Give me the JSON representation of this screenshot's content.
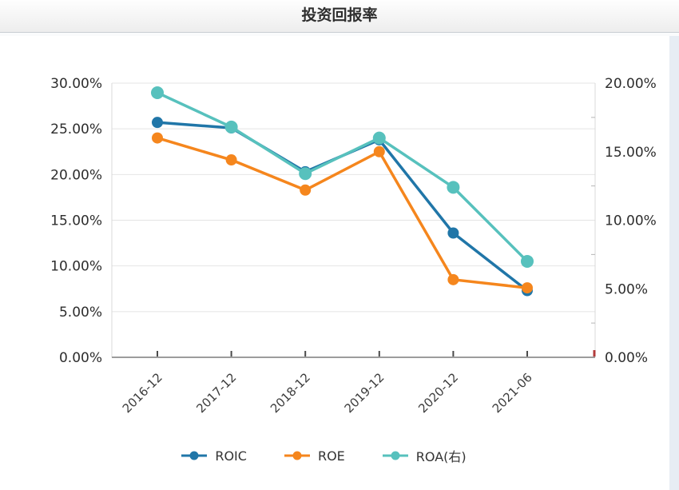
{
  "header": {
    "title": "投资回报率"
  },
  "colors": {
    "roic": "#2076a8",
    "roe": "#f5861d",
    "roa": "#57c1bd",
    "grid": "#e4e4e4",
    "axis_line": "#9c9c9c",
    "tick": "#4a4a4a",
    "end_tick": "#b23b3b",
    "text": "#2d2d2d"
  },
  "chart_data": {
    "type": "line",
    "title": "投资回报率",
    "categories": [
      "2016-12",
      "2017-12",
      "2018-12",
      "2019-12",
      "2020-12",
      "2021-06"
    ],
    "series": [
      {
        "name": "ROIC",
        "axis": "left",
        "color_key": "roic",
        "dot_radius": 7,
        "values": [
          25.7,
          25.1,
          20.3,
          23.8,
          13.6,
          7.3
        ]
      },
      {
        "name": "ROE",
        "axis": "left",
        "color_key": "roe",
        "dot_radius": 7,
        "values": [
          24.0,
          21.6,
          18.3,
          22.5,
          8.5,
          7.6
        ]
      },
      {
        "name": "ROA(右)",
        "axis": "right",
        "color_key": "roa",
        "dot_radius": 8,
        "values": [
          19.3,
          16.8,
          13.4,
          16.0,
          12.4,
          7.0
        ]
      }
    ],
    "left_axis": {
      "min": 0,
      "max": 30,
      "tick_values": [
        0,
        5,
        10,
        15,
        20,
        25,
        30
      ],
      "tick_labels": [
        "0.00%",
        "5.00%",
        "10.00%",
        "15.00%",
        "20.00%",
        "25.00%",
        "30.00%"
      ]
    },
    "right_axis": {
      "min": 0,
      "max": 20,
      "minor_tick_step": 2.5,
      "tick_values": [
        0,
        5,
        10,
        15,
        20
      ],
      "tick_labels": [
        "0.00%",
        "5.00%",
        "10.00%",
        "15.00%",
        "20.00%"
      ]
    },
    "legend_position": "bottom",
    "grid": true,
    "x_label_rotation": -45
  }
}
